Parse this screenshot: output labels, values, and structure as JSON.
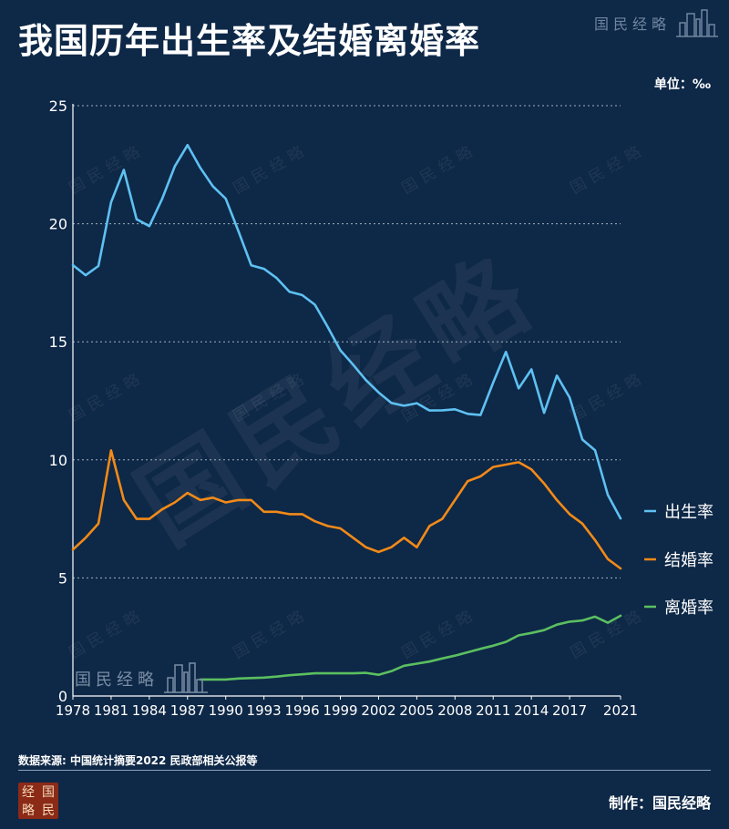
{
  "title": "我国历年出生率及结婚离婚率",
  "brand": "国民经略",
  "unit_label": "单位：‰",
  "source": "数据来源: 中国统计摘要2022 民政部相关公报等",
  "maker": "制作：国民经略",
  "logo_chars": [
    "经",
    "国",
    "略",
    "民"
  ],
  "watermark": "国民经略",
  "colors": {
    "background": "#0e2847",
    "birth": "#5ec1f2",
    "marriage": "#f28a18",
    "divorce": "#5bbf60",
    "grid": "#c8d3e0"
  },
  "chart_data": {
    "type": "line",
    "xlabel": "",
    "ylabel": "",
    "xlim": [
      1978,
      2021
    ],
    "ylim": [
      0,
      25
    ],
    "yticks": [
      0,
      5,
      10,
      15,
      20,
      25
    ],
    "xticks": [
      1978,
      1981,
      1984,
      1987,
      1990,
      1993,
      1996,
      1999,
      2002,
      2005,
      2008,
      2011,
      2014,
      2017,
      2021
    ],
    "grid": "horizontal-dotted",
    "legend_position": "right",
    "series": [
      {
        "name": "出生率",
        "color": "#5ec1f2",
        "x": [
          1978,
          1979,
          1980,
          1981,
          1982,
          1983,
          1984,
          1985,
          1986,
          1987,
          1988,
          1989,
          1990,
          1991,
          1992,
          1993,
          1994,
          1995,
          1996,
          1997,
          1998,
          1999,
          2000,
          2001,
          2002,
          2003,
          2004,
          2005,
          2006,
          2007,
          2008,
          2009,
          2010,
          2011,
          2012,
          2013,
          2014,
          2015,
          2016,
          2017,
          2018,
          2019,
          2020,
          2021
        ],
        "values": [
          18.25,
          17.82,
          18.21,
          20.91,
          22.28,
          20.19,
          19.9,
          21.04,
          22.43,
          23.33,
          22.37,
          21.58,
          21.06,
          19.68,
          18.24,
          18.09,
          17.7,
          17.12,
          16.98,
          16.57,
          15.64,
          14.64,
          14.03,
          13.38,
          12.86,
          12.41,
          12.29,
          12.4,
          12.09,
          12.1,
          12.14,
          11.95,
          11.9,
          13.27,
          14.57,
          13.03,
          13.83,
          11.99,
          13.57,
          12.64,
          10.86,
          10.41,
          8.52,
          7.52
        ]
      },
      {
        "name": "结婚率",
        "color": "#f28a18",
        "x": [
          1978,
          1979,
          1980,
          1981,
          1982,
          1983,
          1984,
          1985,
          1986,
          1987,
          1988,
          1989,
          1990,
          1991,
          1992,
          1993,
          1994,
          1995,
          1996,
          1997,
          1998,
          1999,
          2000,
          2001,
          2002,
          2003,
          2004,
          2005,
          2006,
          2007,
          2008,
          2009,
          2010,
          2011,
          2012,
          2013,
          2014,
          2015,
          2016,
          2017,
          2018,
          2019,
          2020,
          2021
        ],
        "values": [
          6.2,
          6.7,
          7.3,
          10.4,
          8.3,
          7.5,
          7.5,
          7.9,
          8.2,
          8.6,
          8.3,
          8.4,
          8.2,
          8.3,
          8.3,
          7.8,
          7.8,
          7.7,
          7.7,
          7.4,
          7.2,
          7.1,
          6.7,
          6.3,
          6.1,
          6.3,
          6.7,
          6.3,
          7.2,
          7.5,
          8.3,
          9.1,
          9.3,
          9.7,
          9.8,
          9.9,
          9.6,
          9.0,
          8.3,
          7.7,
          7.3,
          6.6,
          5.8,
          5.4
        ]
      },
      {
        "name": "离婚率",
        "color": "#5bbf60",
        "x": [
          1988,
          1989,
          1990,
          1991,
          1992,
          1993,
          1994,
          1995,
          1996,
          1997,
          1998,
          1999,
          2000,
          2001,
          2002,
          2003,
          2004,
          2005,
          2006,
          2007,
          2008,
          2009,
          2010,
          2011,
          2012,
          2013,
          2014,
          2015,
          2016,
          2017,
          2018,
          2019,
          2020,
          2021
        ],
        "values": [
          0.7,
          0.7,
          0.7,
          0.74,
          0.76,
          0.78,
          0.82,
          0.88,
          0.92,
          0.96,
          0.96,
          0.96,
          0.96,
          0.98,
          0.9,
          1.05,
          1.28,
          1.37,
          1.46,
          1.59,
          1.71,
          1.85,
          2.0,
          2.13,
          2.29,
          2.57,
          2.67,
          2.79,
          3.02,
          3.15,
          3.2,
          3.36,
          3.1,
          3.4
        ]
      }
    ]
  }
}
